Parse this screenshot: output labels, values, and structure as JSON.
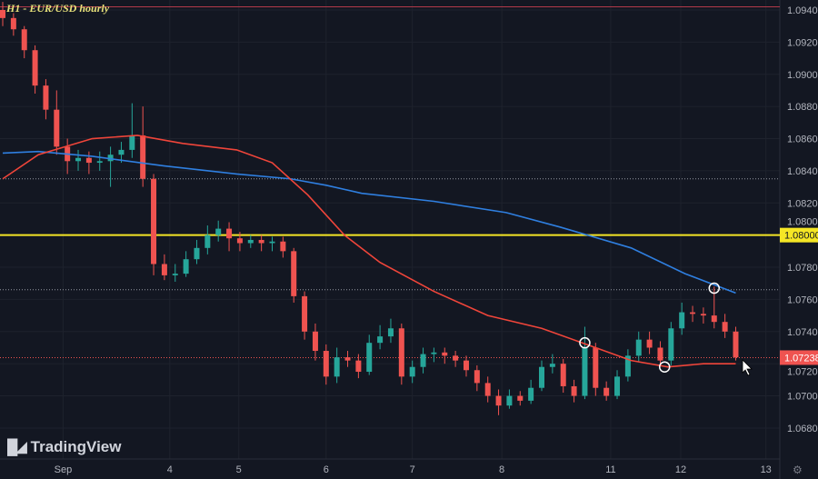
{
  "title": "H1 - EUR/USD hourly",
  "brand": "TradingView",
  "icons": {
    "settings": "gear-icon",
    "cursor": "arrow-cursor-icon",
    "logo": "tradingview-logo-icon"
  },
  "colors": {
    "background": "#131722",
    "up": "#26a69a",
    "down": "#ef5350",
    "ma_fast": "#f0453a",
    "ma_slow": "#2f7fe0",
    "level": "#f5e625",
    "grid": "#1e222d"
  },
  "chart_data": {
    "type": "candlestick",
    "title": "H1 - EUR/USD hourly",
    "ylim": [
      1.068,
      1.0945
    ],
    "grid": true,
    "y_ticks": [
      "1.09400",
      "1.09200",
      "1.09000",
      "1.08800",
      "1.08600",
      "1.08400",
      "1.08200",
      "1.08000",
      "1.07800",
      "1.07600",
      "1.07400",
      "1.07200",
      "1.07000",
      "1.06800"
    ],
    "x_ticks": [
      {
        "label": "Sep",
        "at_candle": 5.6
      },
      {
        "label": "4",
        "at_candle": 15.5
      },
      {
        "label": "5",
        "at_candle": 21.9
      },
      {
        "label": "6",
        "at_candle": 30
      },
      {
        "label": "7",
        "at_candle": 38
      },
      {
        "label": "8",
        "at_candle": 46.3
      },
      {
        "label": "11",
        "at_candle": 56.4
      },
      {
        "label": "12",
        "at_candle": 62.9
      },
      {
        "label": "13",
        "at_candle": 70.8
      }
    ],
    "candles": [
      [
        1.094,
        1.0945,
        1.093,
        1.0935
      ],
      [
        1.0935,
        1.0938,
        1.0924,
        1.0928
      ],
      [
        1.0928,
        1.093,
        1.091,
        1.0915
      ],
      [
        1.0915,
        1.0918,
        1.0888,
        1.0893
      ],
      [
        1.0893,
        1.0897,
        1.0872,
        1.0878
      ],
      [
        1.0878,
        1.089,
        1.085,
        1.0855
      ],
      [
        1.0855,
        1.086,
        1.0838,
        1.0846
      ],
      [
        1.0846,
        1.0853,
        1.084,
        1.0848
      ],
      [
        1.0848,
        1.0852,
        1.0838,
        1.0845
      ],
      [
        1.0845,
        1.0852,
        1.084,
        1.0846
      ],
      [
        1.0846,
        1.0855,
        1.083,
        1.085
      ],
      [
        1.085,
        1.0858,
        1.0845,
        1.0853
      ],
      [
        1.0853,
        1.0882,
        1.0848,
        1.0862
      ],
      [
        1.0862,
        1.088,
        1.083,
        1.0835
      ],
      [
        1.0835,
        1.0838,
        1.0775,
        1.0782
      ],
      [
        1.0782,
        1.0788,
        1.0772,
        1.0775
      ],
      [
        1.0775,
        1.0782,
        1.0771,
        1.0776
      ],
      [
        1.0776,
        1.079,
        1.0774,
        1.0785
      ],
      [
        1.0785,
        1.0797,
        1.0782,
        1.0792
      ],
      [
        1.0792,
        1.0806,
        1.0788,
        1.08
      ],
      [
        1.08,
        1.0809,
        1.0796,
        1.0804
      ],
      [
        1.0804,
        1.0808,
        1.079,
        1.0798
      ],
      [
        1.0798,
        1.0802,
        1.079,
        1.0795
      ],
      [
        1.0795,
        1.08,
        1.0792,
        1.0797
      ],
      [
        1.0797,
        1.08,
        1.079,
        1.0795
      ],
      [
        1.0795,
        1.0799,
        1.079,
        1.0796
      ],
      [
        1.0796,
        1.0799,
        1.0786,
        1.079
      ],
      [
        1.079,
        1.0792,
        1.0758,
        1.0762
      ],
      [
        1.0762,
        1.0765,
        1.0735,
        1.074
      ],
      [
        1.074,
        1.0745,
        1.0722,
        1.0728
      ],
      [
        1.0728,
        1.0732,
        1.0707,
        1.0712
      ],
      [
        1.0712,
        1.073,
        1.0708,
        1.0724
      ],
      [
        1.0724,
        1.0728,
        1.0718,
        1.0722
      ],
      [
        1.0722,
        1.0726,
        1.0711,
        1.0715
      ],
      [
        1.0715,
        1.0738,
        1.0713,
        1.0733
      ],
      [
        1.0733,
        1.0744,
        1.0729,
        1.0737
      ],
      [
        1.0737,
        1.0748,
        1.0733,
        1.0742
      ],
      [
        1.0742,
        1.0745,
        1.0707,
        1.0712
      ],
      [
        1.0712,
        1.0722,
        1.0708,
        1.0718
      ],
      [
        1.0718,
        1.073,
        1.0714,
        1.0726
      ],
      [
        1.0726,
        1.073,
        1.0721,
        1.0727
      ],
      [
        1.0727,
        1.073,
        1.072,
        1.0725
      ],
      [
        1.0725,
        1.0728,
        1.0718,
        1.0722
      ],
      [
        1.0722,
        1.0725,
        1.0712,
        1.0716
      ],
      [
        1.0716,
        1.0719,
        1.0703,
        1.0708
      ],
      [
        1.0708,
        1.0712,
        1.0696,
        1.07
      ],
      [
        1.07,
        1.0704,
        1.0688,
        1.0694
      ],
      [
        1.0694,
        1.0704,
        1.0692,
        1.07
      ],
      [
        1.07,
        1.0703,
        1.0694,
        1.0697
      ],
      [
        1.0697,
        1.071,
        1.0695,
        1.0705
      ],
      [
        1.0705,
        1.0722,
        1.0703,
        1.0718
      ],
      [
        1.0718,
        1.0726,
        1.0714,
        1.072
      ],
      [
        1.072,
        1.0723,
        1.0702,
        1.0706
      ],
      [
        1.0706,
        1.071,
        1.0696,
        1.07
      ],
      [
        1.07,
        1.0743,
        1.0698,
        1.073
      ],
      [
        1.073,
        1.0733,
        1.07,
        1.0705
      ],
      [
        1.0705,
        1.0709,
        1.0697,
        1.07
      ],
      [
        1.07,
        1.0716,
        1.0698,
        1.0712
      ],
      [
        1.0712,
        1.0729,
        1.0709,
        1.0725
      ],
      [
        1.0725,
        1.074,
        1.0721,
        1.0735
      ],
      [
        1.0735,
        1.074,
        1.0726,
        1.073
      ],
      [
        1.073,
        1.0734,
        1.0718,
        1.0722
      ],
      [
        1.0722,
        1.0746,
        1.0719,
        1.0742
      ],
      [
        1.0742,
        1.0758,
        1.0738,
        1.0752
      ],
      [
        1.0752,
        1.0756,
        1.0746,
        1.0751
      ],
      [
        1.0751,
        1.0755,
        1.0745,
        1.075
      ],
      [
        1.075,
        1.0768,
        1.0742,
        1.0746
      ],
      [
        1.0746,
        1.0751,
        1.0736,
        1.074
      ],
      [
        1.074,
        1.0743,
        1.0722,
        1.0724
      ]
    ],
    "ma_slow": [
      [
        0,
        1.0851
      ],
      [
        3.3,
        1.0852
      ],
      [
        8.3,
        1.0849
      ],
      [
        15,
        1.0843
      ],
      [
        21.7,
        1.0838
      ],
      [
        26.7,
        1.0835
      ],
      [
        30,
        1.0831
      ],
      [
        33.3,
        1.0826
      ],
      [
        40,
        1.0821
      ],
      [
        46.7,
        1.0814
      ],
      [
        51.7,
        1.0805
      ],
      [
        58.3,
        1.0792
      ],
      [
        63.3,
        1.0776
      ],
      [
        68,
        1.0764
      ]
    ],
    "ma_fast": [
      [
        0,
        1.0835
      ],
      [
        3.3,
        1.085
      ],
      [
        8.3,
        1.086
      ],
      [
        12.5,
        1.0862
      ],
      [
        16.7,
        1.0857
      ],
      [
        21.7,
        1.0853
      ],
      [
        25,
        1.0845
      ],
      [
        28.3,
        1.0825
      ],
      [
        31.7,
        1.08
      ],
      [
        35,
        1.0783
      ],
      [
        40,
        1.0765
      ],
      [
        45,
        1.075
      ],
      [
        50,
        1.0742
      ],
      [
        55,
        1.073
      ],
      [
        58.3,
        1.0722
      ],
      [
        61.7,
        1.0718
      ],
      [
        65,
        1.072
      ],
      [
        68,
        1.072
      ]
    ],
    "levels": [
      {
        "price": 1.08,
        "label": "1.08000",
        "style": "solid",
        "color": "#f5e625"
      },
      {
        "price": 1.0835,
        "style": "dotted",
        "color": "#9598a1"
      },
      {
        "price": 1.0766,
        "style": "dotted",
        "color": "#9598a1"
      },
      {
        "price": 1.0942,
        "style": "solid",
        "color": "#b2394a"
      }
    ],
    "last_price": {
      "price": 1.07238,
      "label": "1.07238",
      "color": "#ef5350"
    },
    "markers": [
      {
        "type": "circle",
        "at_candle": 54,
        "price": 1.0733
      },
      {
        "type": "circle",
        "at_candle": 61.4,
        "price": 1.0718
      },
      {
        "type": "circle",
        "at_candle": 66,
        "price": 1.0767
      }
    ]
  }
}
